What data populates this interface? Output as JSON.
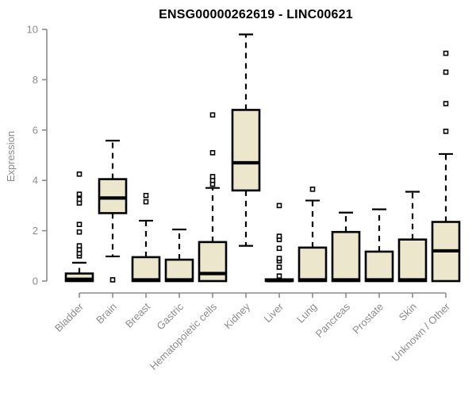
{
  "chart_data": {
    "type": "boxplot",
    "title": "ENSG00000262619 - LINC00621",
    "ylabel": "Expression",
    "xlabel": "",
    "ylim": [
      0,
      10
    ],
    "yticks": [
      0,
      2,
      4,
      6,
      8,
      10
    ],
    "grid": false,
    "legend": "none",
    "categories": [
      "Bladder",
      "Brain",
      "Breast",
      "Gastric",
      "Hematopoietic cells",
      "Kidney",
      "Liver",
      "Lung",
      "Pancreas",
      "Prostate",
      "Skin",
      "Unknown / Other"
    ],
    "boxes": [
      {
        "category": "Bladder",
        "low": 0,
        "q1": 0,
        "median": 0.07,
        "q3": 0.3,
        "high": 0.73,
        "outliers": [
          1.0,
          1.1,
          1.25,
          1.4,
          1.95,
          2.25,
          3.1,
          3.25,
          3.45,
          4.25
        ]
      },
      {
        "category": "Brain",
        "low": 0.98,
        "q1": 2.7,
        "median": 3.3,
        "q3": 4.05,
        "high": 5.58,
        "outliers": [
          0.05
        ]
      },
      {
        "category": "Breast",
        "low": 0,
        "q1": 0,
        "median": 0.05,
        "q3": 0.95,
        "high": 2.4,
        "outliers": [
          3.15,
          3.4
        ]
      },
      {
        "category": "Gastric",
        "low": 0,
        "q1": 0,
        "median": 0.05,
        "q3": 0.85,
        "high": 2.05,
        "outliers": []
      },
      {
        "category": "Hematopoietic cells",
        "low": 0,
        "q1": 0,
        "median": 0.3,
        "q3": 1.55,
        "high": 3.7,
        "outliers": [
          3.85,
          4.0,
          4.15,
          5.1,
          6.6
        ]
      },
      {
        "category": "Kidney",
        "low": 1.4,
        "q1": 3.6,
        "median": 4.7,
        "q3": 6.8,
        "high": 9.8,
        "outliers": []
      },
      {
        "category": "Liver",
        "low": 0,
        "q1": 0,
        "median": 0.02,
        "q3": 0.07,
        "high": 0.07,
        "outliers": [
          0.2,
          0.55,
          0.8,
          0.9,
          1.3,
          1.65,
          1.78,
          3.0
        ]
      },
      {
        "category": "Lung",
        "low": 0,
        "q1": 0,
        "median": 0.05,
        "q3": 1.33,
        "high": 3.2,
        "outliers": [
          3.65
        ]
      },
      {
        "category": "Pancreas",
        "low": 0,
        "q1": 0,
        "median": 0.05,
        "q3": 1.95,
        "high": 2.72,
        "outliers": []
      },
      {
        "category": "Prostate",
        "low": 0,
        "q1": 0,
        "median": 0.05,
        "q3": 1.17,
        "high": 2.85,
        "outliers": []
      },
      {
        "category": "Skin",
        "low": 0,
        "q1": 0,
        "median": 0.05,
        "q3": 1.65,
        "high": 3.55,
        "outliers": []
      },
      {
        "category": "Unknown / Other",
        "low": 0,
        "q1": 0,
        "median": 1.2,
        "q3": 2.35,
        "high": 5.05,
        "outliers": [
          5.95,
          7.05,
          8.3,
          9.05
        ]
      }
    ],
    "colors": {
      "box_fill": "#ece6cd",
      "box_border": "#000000",
      "median": "#000000",
      "whisker": "#000000",
      "outlier_fill": "#ffffff",
      "axis": "#8c8c8c",
      "tick_label": "#8c8c8c",
      "title": "#000000"
    }
  }
}
